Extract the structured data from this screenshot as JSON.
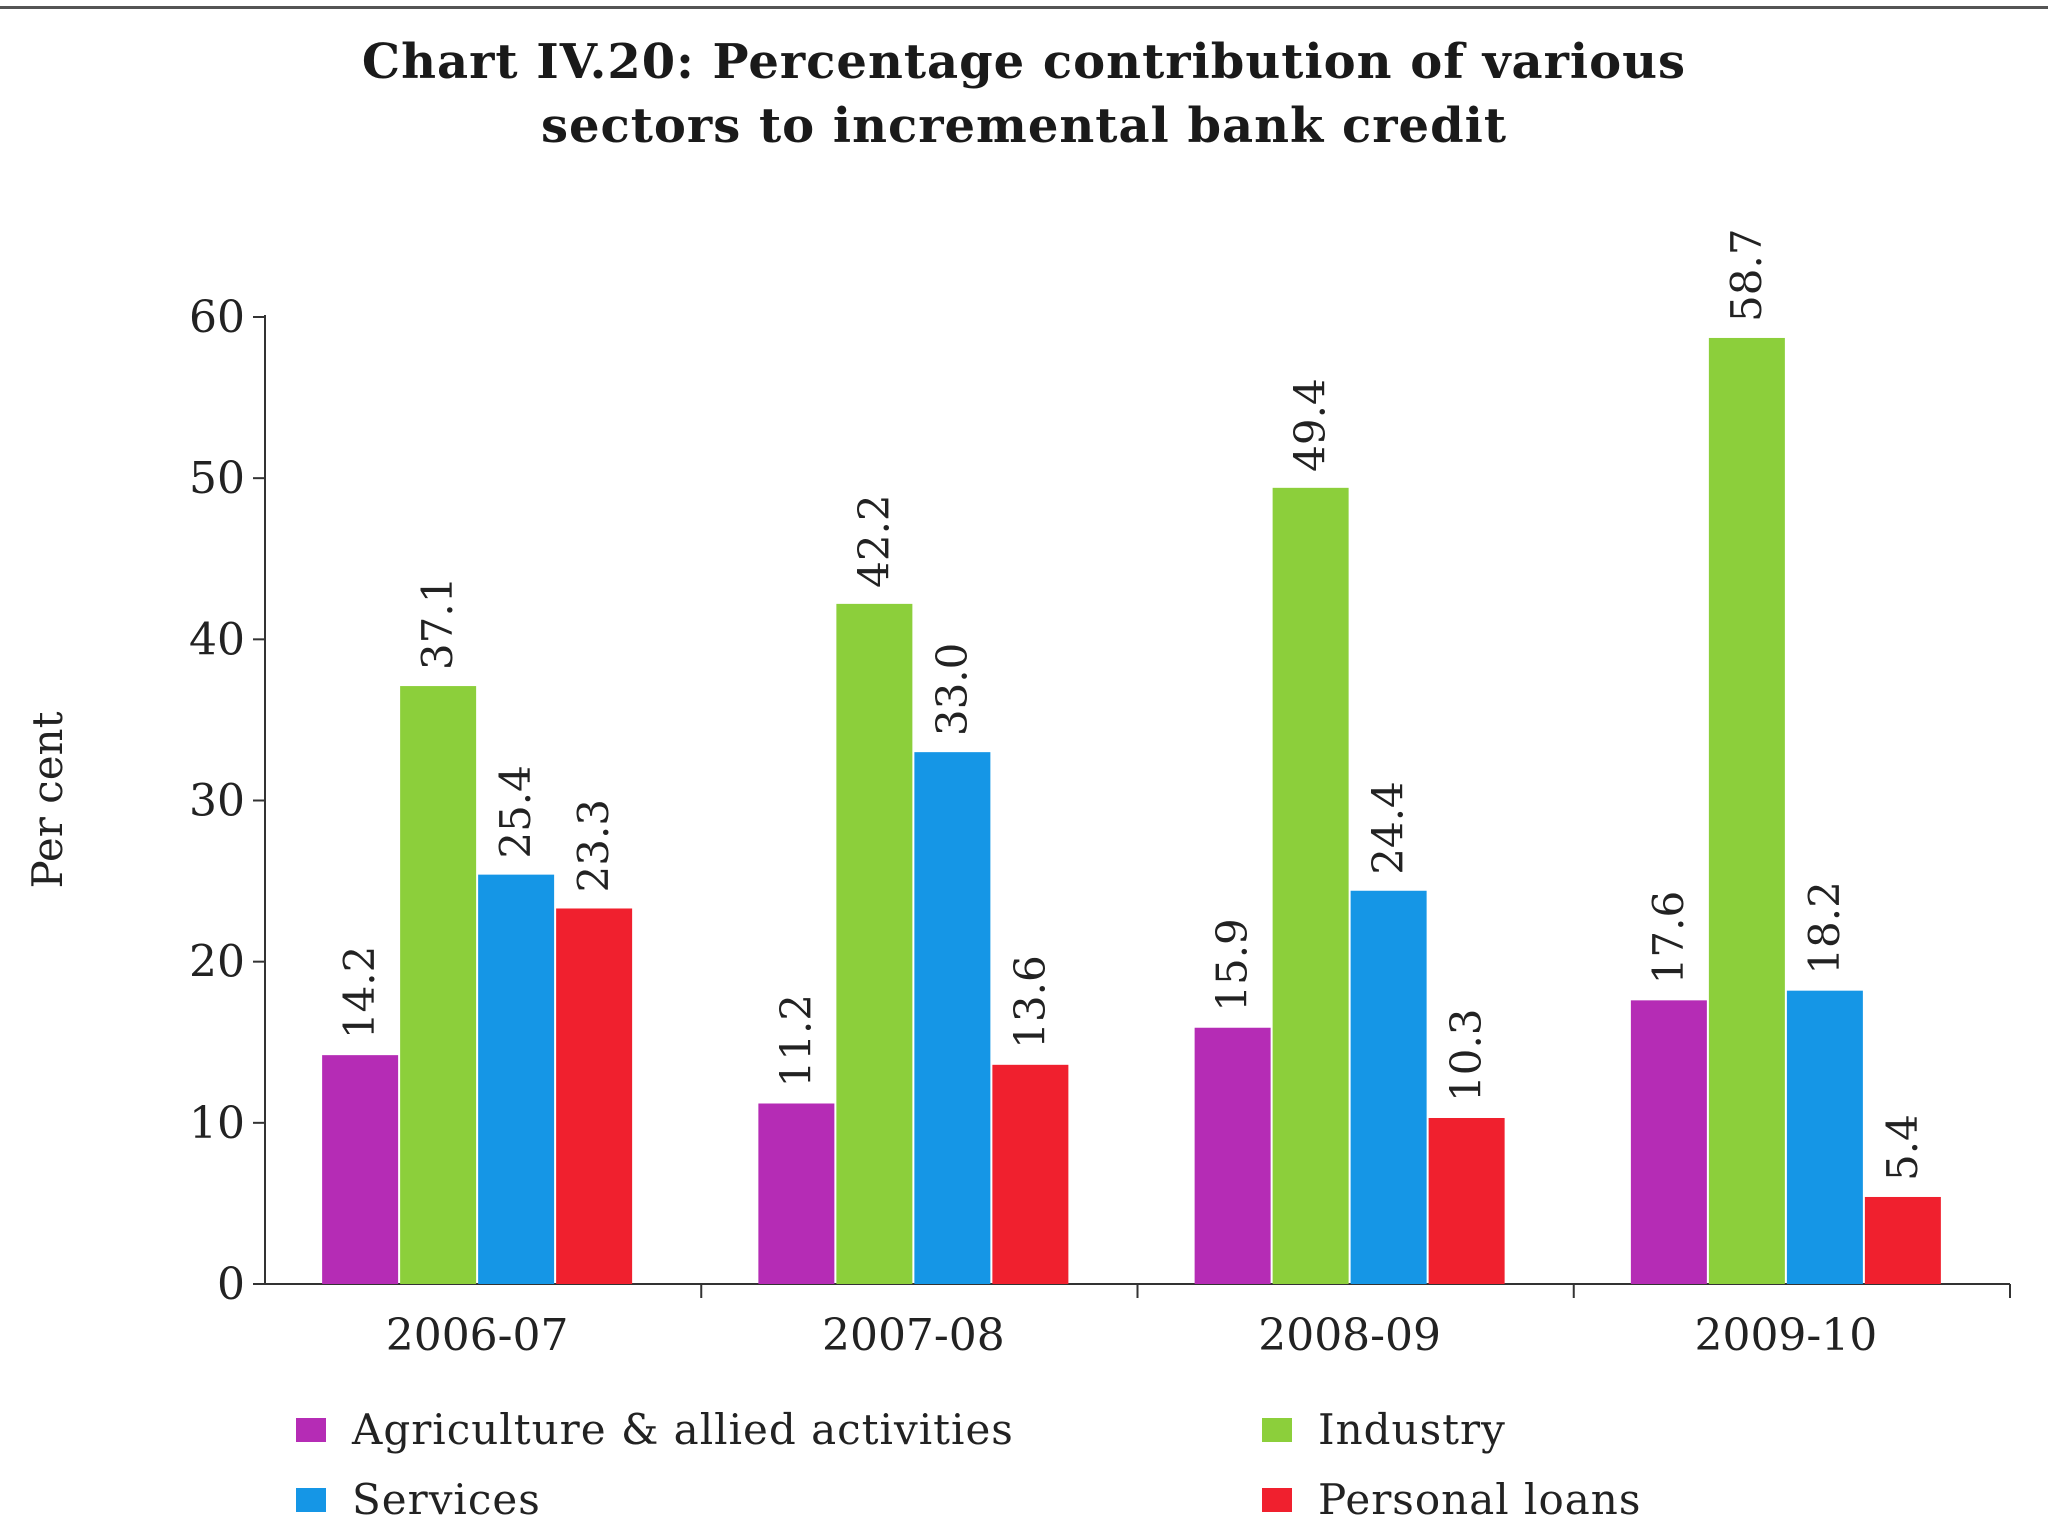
{
  "chart_data": {
    "type": "bar",
    "title_lines": [
      "Chart IV.20: Percentage contribution of various",
      "sectors to incremental bank credit"
    ],
    "ylabel": "Per cent",
    "xlabel": "",
    "ylim": [
      0,
      60
    ],
    "yticks": [
      0,
      10,
      20,
      30,
      40,
      50,
      60
    ],
    "categories": [
      "2006-07",
      "2007-08",
      "2008-09",
      "2009-10"
    ],
    "series": [
      {
        "name": "Agriculture & allied activities",
        "color": "#b52cb5",
        "values": [
          14.2,
          11.2,
          15.9,
          17.6
        ],
        "labels": [
          "14.2",
          "11.2",
          "15.9",
          "17.6"
        ]
      },
      {
        "name": "Industry",
        "color": "#8ccf3b",
        "values": [
          37.1,
          42.2,
          49.4,
          58.7
        ],
        "labels": [
          "37.1",
          "42.2",
          "49.4",
          "58.7"
        ]
      },
      {
        "name": "Services",
        "color": "#1596e6",
        "values": [
          25.4,
          33.0,
          24.4,
          18.2
        ],
        "labels": [
          "25.4",
          "33.0",
          "24.4",
          "18.2"
        ]
      },
      {
        "name": "Personal loans",
        "color": "#f0202e",
        "values": [
          23.3,
          13.6,
          10.3,
          5.4
        ],
        "labels": [
          "23.3",
          "13.6",
          "10.3",
          "5.4"
        ]
      }
    ],
    "grid": false,
    "legend_position": "bottom"
  }
}
